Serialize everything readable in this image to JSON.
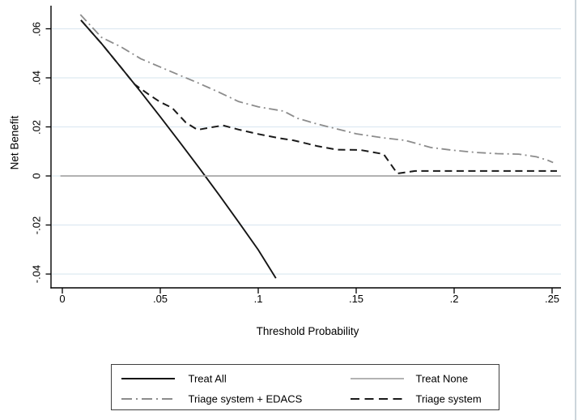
{
  "figure": {
    "background": "#ffffff",
    "axis_color": "#000000",
    "grid_color": "#dde9f1"
  },
  "chart_data": {
    "type": "line",
    "title": "",
    "xlabel": "Threshold Probability",
    "ylabel": "Net Benefit",
    "xlim": [
      0,
      0.255
    ],
    "ylim": [
      -0.046,
      0.069
    ],
    "grid": "horizontal",
    "legend_position": "bottom-center",
    "x_ticks": [
      0,
      0.05,
      0.1,
      0.15,
      0.2,
      0.25
    ],
    "x_tick_labels": [
      "0",
      ".05",
      ".1",
      ".15",
      ".2",
      ".25"
    ],
    "y_ticks": [
      0.06,
      0.04,
      0.02,
      0,
      -0.02,
      -0.04
    ],
    "y_tick_labels": [
      ".06",
      ".04",
      ".02",
      "0",
      "-.02",
      "-.04"
    ],
    "series": [
      {
        "name": "Treat All",
        "color": "#141414",
        "style": "solid",
        "width": 1.9,
        "dash": null,
        "legend_dash": null,
        "points": [
          [
            0.0095,
            0.0635
          ],
          [
            0.02,
            0.054
          ],
          [
            0.03,
            0.0442
          ],
          [
            0.04,
            0.0343
          ],
          [
            0.05,
            0.0241
          ],
          [
            0.06,
            0.0137
          ],
          [
            0.07,
            0.0031
          ],
          [
            0.08,
            -0.0077
          ],
          [
            0.09,
            -0.0188
          ],
          [
            0.1,
            -0.0301
          ],
          [
            0.109,
            -0.0417
          ]
        ]
      },
      {
        "name": "Treat None",
        "color": "#a8a8a8",
        "style": "solid",
        "width": 1.7,
        "dash": null,
        "legend_dash": null,
        "points": [
          [
            -0.001,
            0
          ],
          [
            0.2545,
            0
          ]
        ]
      },
      {
        "name": "Triage system + EDACS",
        "color": "#8c8c8c",
        "style": "dash-dot",
        "width": 1.8,
        "dash": "11 4.5 2 4.5",
        "legend_dash": "13 5 2 5",
        "points": [
          [
            0.0092,
            0.0658
          ],
          [
            0.02,
            0.0565
          ],
          [
            0.03,
            0.0526
          ],
          [
            0.04,
            0.0478
          ],
          [
            0.05,
            0.0444
          ],
          [
            0.061,
            0.0407
          ],
          [
            0.07,
            0.0377
          ],
          [
            0.08,
            0.0341
          ],
          [
            0.09,
            0.0303
          ],
          [
            0.1,
            0.0282
          ],
          [
            0.113,
            0.0264
          ],
          [
            0.12,
            0.0235
          ],
          [
            0.13,
            0.0212
          ],
          [
            0.142,
            0.0188
          ],
          [
            0.15,
            0.0172
          ],
          [
            0.164,
            0.0155
          ],
          [
            0.175,
            0.0145
          ],
          [
            0.188,
            0.0116
          ],
          [
            0.199,
            0.0105
          ],
          [
            0.211,
            0.0096
          ],
          [
            0.222,
            0.0091
          ],
          [
            0.233,
            0.0089
          ],
          [
            0.242,
            0.0078
          ],
          [
            0.248,
            0.0063
          ],
          [
            0.2505,
            0.0055
          ]
        ]
      },
      {
        "name": "Triage system",
        "color": "#1a1a1a",
        "style": "dashed",
        "width": 2,
        "dash": "9 5.5",
        "legend_dash": "11 6.5",
        "points": [
          [
            0.0095,
            0.0635
          ],
          [
            0.02,
            0.054
          ],
          [
            0.03,
            0.0442
          ],
          [
            0.037,
            0.0373
          ],
          [
            0.044,
            0.0333
          ],
          [
            0.05,
            0.0301
          ],
          [
            0.056,
            0.0278
          ],
          [
            0.063,
            0.0218
          ],
          [
            0.069,
            0.0188
          ],
          [
            0.076,
            0.0198
          ],
          [
            0.082,
            0.0206
          ],
          [
            0.09,
            0.0189
          ],
          [
            0.1,
            0.0171
          ],
          [
            0.11,
            0.0155
          ],
          [
            0.118,
            0.0145
          ],
          [
            0.13,
            0.0122
          ],
          [
            0.14,
            0.0107
          ],
          [
            0.152,
            0.0106
          ],
          [
            0.164,
            0.0089
          ],
          [
            0.171,
            0.001
          ],
          [
            0.18,
            0.002
          ],
          [
            0.2,
            0.002
          ],
          [
            0.22,
            0.002
          ],
          [
            0.24,
            0.002
          ],
          [
            0.2525,
            0.002
          ]
        ]
      }
    ]
  },
  "legend": {
    "items": [
      {
        "label": "Treat All",
        "series": 0
      },
      {
        "label": "Treat None",
        "series": 1
      },
      {
        "label": "Triage system + EDACS",
        "series": 2
      },
      {
        "label": "Triage system",
        "series": 3
      }
    ]
  }
}
